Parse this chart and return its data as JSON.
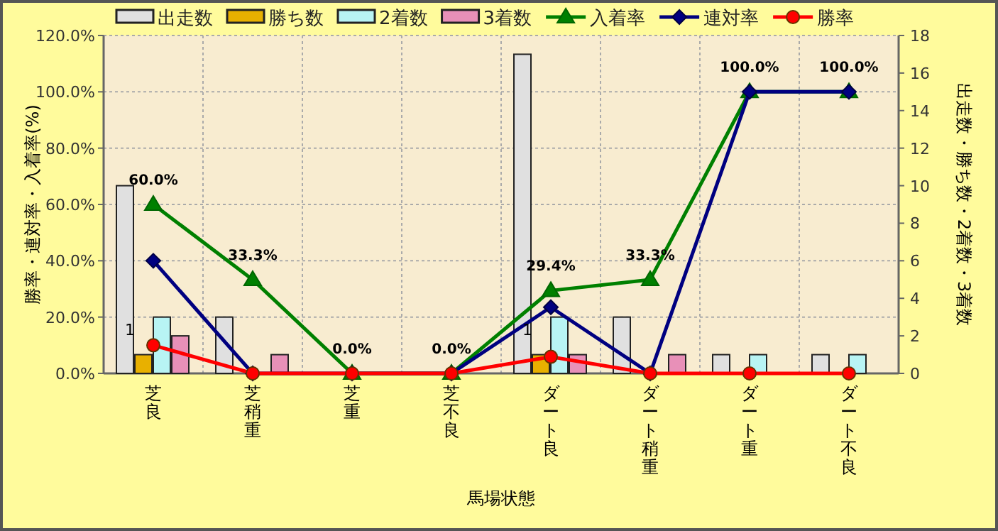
{
  "chart_data": {
    "type": "bar",
    "xlabel": "馬場状態",
    "ylabel": "勝率・連対率・入着率(%)",
    "y2label": "出走数・勝ち数・2着数・3着数",
    "categories": [
      "芝良",
      "芝稍重",
      "芝重",
      "芝不良",
      "ダート良",
      "ダート稍重",
      "ダート重",
      "ダート不良"
    ],
    "series": [
      {
        "name": "出走数",
        "axis": "y2",
        "color": "#e0e0e0",
        "values": [
          10,
          3,
          0,
          0,
          17,
          3,
          1,
          1
        ]
      },
      {
        "name": "勝ち数",
        "axis": "y2",
        "color": "#e8b000",
        "values": [
          1,
          0,
          0,
          0,
          1,
          0,
          0,
          0
        ],
        "value_labels": [
          "1",
          null,
          null,
          null,
          "1",
          null,
          null,
          null
        ]
      },
      {
        "name": "2着数",
        "axis": "y2",
        "color": "#b8f4f4",
        "values": [
          3,
          0,
          0,
          0,
          3,
          0,
          1,
          1
        ]
      },
      {
        "name": "3着数",
        "axis": "y2",
        "color": "#e890b8",
        "values": [
          2,
          1,
          0,
          0,
          1,
          1,
          0,
          0
        ]
      },
      {
        "name": "入着率",
        "type": "line",
        "axis": "y",
        "color": "#008000",
        "marker": "triangle",
        "values": [
          60.0,
          33.3,
          0.0,
          0.0,
          29.4,
          33.3,
          100.0,
          100.0
        ],
        "value_labels": [
          "60.0%",
          "33.3%",
          "0.0%",
          "0.0%",
          "29.4%",
          "33.3%",
          "100.0%",
          "100.0%"
        ]
      },
      {
        "name": "連対率",
        "type": "line",
        "axis": "y",
        "color": "#000080",
        "marker": "diamond",
        "values": [
          40.0,
          0.0,
          0.0,
          0.0,
          23.5,
          0.0,
          100.0,
          100.0
        ]
      },
      {
        "name": "勝率",
        "type": "line",
        "axis": "y",
        "color": "#ff0000",
        "marker": "circle",
        "values": [
          10.0,
          0.0,
          0.0,
          0.0,
          5.9,
          0.0,
          0.0,
          0.0
        ]
      }
    ],
    "ylim": [
      0,
      120
    ],
    "yticks": [
      {
        "value": 0,
        "label": "0.0%"
      },
      {
        "value": 20,
        "label": "20.0%"
      },
      {
        "value": 40,
        "label": "40.0%"
      },
      {
        "value": 60,
        "label": "60.0%"
      },
      {
        "value": 80,
        "label": "80.0%"
      },
      {
        "value": 100,
        "label": "100.0%"
      },
      {
        "value": 120,
        "label": "120.0%"
      }
    ],
    "y2lim": [
      0,
      18
    ],
    "y2ticks": [
      0,
      2,
      4,
      6,
      8,
      10,
      12,
      14,
      16,
      18
    ],
    "grid": true,
    "legend": "top",
    "line_style": "solid"
  }
}
